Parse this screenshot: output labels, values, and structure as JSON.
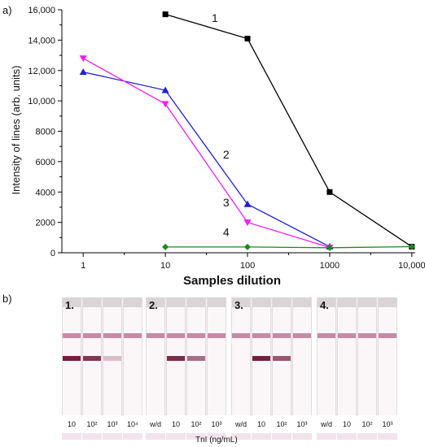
{
  "panel_a_label": "a)",
  "panel_b_label": "b)",
  "chart_data": {
    "type": "line",
    "xlabel": "Samples dilution",
    "ylabel": "Intensity of lines (arb. units)",
    "xscale": "log",
    "xlim": [
      0.55,
      11000
    ],
    "ylim": [
      0,
      16000
    ],
    "x_ticks": [
      1,
      10,
      100,
      1000,
      10000
    ],
    "x_tick_labels": [
      "1",
      "10",
      "100",
      "1000",
      "10,000"
    ],
    "y_ticks": [
      0,
      2000,
      4000,
      6000,
      8000,
      10000,
      12000,
      14000,
      16000
    ],
    "y_tick_labels": [
      "0",
      "2000",
      "4000",
      "6000",
      "8000",
      "10,000",
      "12,000",
      "14,000",
      "16,000"
    ],
    "grid": false,
    "series": [
      {
        "name": "1",
        "color": "#000000",
        "marker": "square",
        "x": [
          10,
          100,
          1000,
          10000
        ],
        "y": [
          15700,
          14100,
          4000,
          400
        ]
      },
      {
        "name": "2",
        "color": "#1f1fd0",
        "marker": "triangle-up",
        "x": [
          1,
          10,
          100,
          1000
        ],
        "y": [
          11900,
          10700,
          3200,
          400
        ]
      },
      {
        "name": "3",
        "color": "#ee1fee",
        "marker": "triangle-down",
        "x": [
          1,
          10,
          100,
          1000
        ],
        "y": [
          12800,
          9800,
          2000,
          350
        ]
      },
      {
        "name": "4",
        "color": "#1a8a1a",
        "marker": "diamond",
        "x": [
          10,
          100,
          1000,
          10000
        ],
        "y": [
          380,
          380,
          330,
          400
        ]
      }
    ]
  },
  "strips": {
    "units_label": "TnI (ng/mL)",
    "groups": [
      {
        "label": "1.",
        "captions": [
          "10",
          "10²",
          "10³",
          "10⁴"
        ],
        "test_line": [
          0.95,
          0.85,
          0.25,
          0.0
        ]
      },
      {
        "label": "2.",
        "captions": [
          "w/d",
          "10",
          "10²",
          "10³"
        ],
        "test_line": [
          0.0,
          0.9,
          0.6,
          0.0
        ]
      },
      {
        "label": "3.",
        "captions": [
          "w/d",
          "10",
          "10²",
          "10³"
        ],
        "test_line": [
          0.0,
          0.95,
          0.7,
          0.0
        ]
      },
      {
        "label": "4.",
        "captions": [
          "w/d",
          "10",
          "10²",
          "10³"
        ],
        "test_line": [
          0.0,
          0.0,
          0.0,
          0.0
        ]
      }
    ]
  }
}
